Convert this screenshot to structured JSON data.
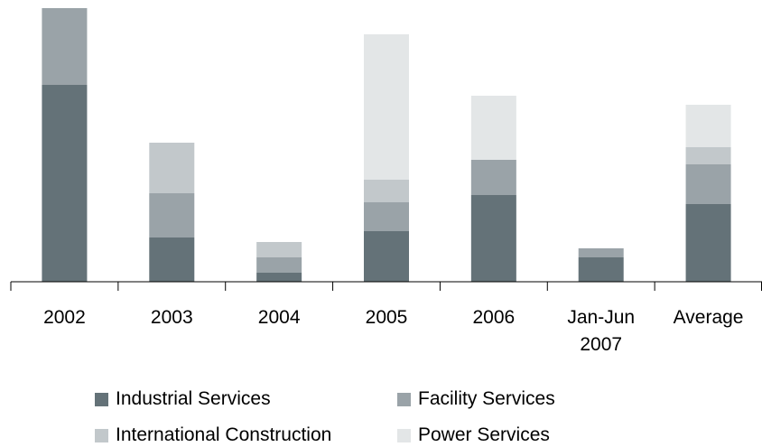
{
  "chart_data": {
    "type": "stacked_bar",
    "categories": [
      "2002",
      "2003",
      "2004",
      "2005",
      "2006",
      "Jan-Jun 2007",
      "Average"
    ],
    "series": [
      {
        "name": "Industrial Services",
        "color": "#647278",
        "values": [
          218,
          49,
          10,
          56,
          96,
          27,
          86
        ]
      },
      {
        "name": "Facility Services",
        "color": "#9aa3a8",
        "values": [
          85,
          49,
          17,
          32,
          39,
          10,
          44
        ]
      },
      {
        "name": "International Construction",
        "color": "#c2c8cb",
        "values": [
          0,
          56,
          17,
          25,
          0,
          0,
          19
        ]
      },
      {
        "name": "Power Services",
        "color": "#e3e6e7",
        "values": [
          0,
          0,
          0,
          161,
          71,
          0,
          47
        ]
      }
    ],
    "ylim": [
      0,
      310
    ]
  }
}
